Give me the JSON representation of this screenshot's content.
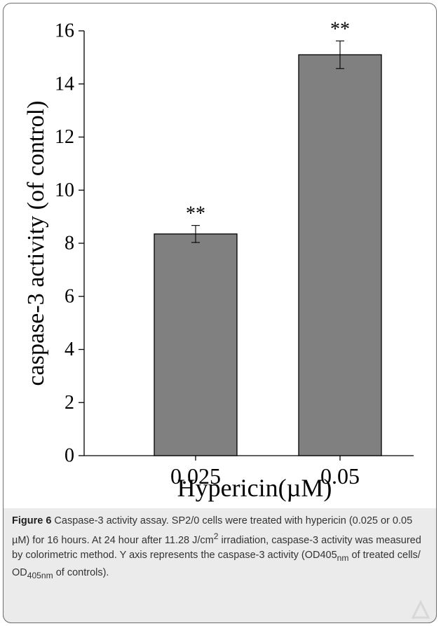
{
  "chart_data": {
    "type": "bar",
    "categories": [
      "0.025",
      "0.05"
    ],
    "values": [
      8.35,
      15.1
    ],
    "error": [
      0.32,
      0.52
    ],
    "annotations": [
      "**",
      "**"
    ],
    "xlabel": "Hypericin(µM)",
    "ylabel": "caspase-3 activity (of control)",
    "ylim": [
      0,
      16
    ],
    "yticks": [
      0,
      2,
      4,
      6,
      8,
      10,
      12,
      14,
      16
    ],
    "bar_color": "#808080",
    "grid": false
  },
  "caption": {
    "label": "Figure 6",
    "text_1": " Caspase-3 activity assay. SP2/0 cells were treated with hypericin (0.025 or 0.05 µM) for 16 hours. At 24 hour after 11.28 J/cm",
    "sup": "2",
    "text_2": " irradiation, caspase-3 activity was measured by colorimetric method. Y axis represents the caspase-3 activity (OD405",
    "sub_1": "nm",
    "text_3": " of treated cells/ OD",
    "sub_2": "405nm",
    "text_4": " of controls)."
  }
}
